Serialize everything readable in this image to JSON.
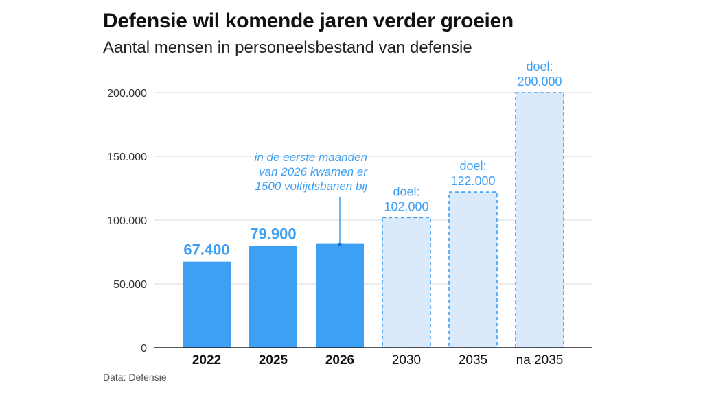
{
  "header": {
    "title": "Defensie wil komende jaren verder groeien",
    "subtitle": "Aantal mensen in personeelsbestand van defensie"
  },
  "footer": {
    "source": "Data: Defensie"
  },
  "colors": {
    "actual_bar": "#3da0f5",
    "target_fill": "#dbeafb",
    "target_stroke": "#3da0f5",
    "label": "#3da0f5",
    "grid": "#d9d9d9"
  },
  "chart_data": {
    "type": "bar",
    "title": "Defensie wil komende jaren verder groeien",
    "subtitle": "Aantal mensen in personeelsbestand van defensie",
    "xlabel": "",
    "ylabel": "",
    "ylim": [
      0,
      200000
    ],
    "yticks": [
      0,
      50000,
      100000,
      150000,
      200000
    ],
    "ytick_labels": [
      "0",
      "50.000",
      "100.000",
      "150.000",
      "200.000"
    ],
    "grid": true,
    "categories": [
      "2022",
      "2025",
      "2026",
      "2030",
      "2035",
      "na 2035"
    ],
    "bars": [
      {
        "category": "2022",
        "value": 67400,
        "kind": "actual",
        "label_lines": [
          "67.400"
        ]
      },
      {
        "category": "2025",
        "value": 79900,
        "kind": "actual",
        "label_lines": [
          "79.900"
        ]
      },
      {
        "category": "2026",
        "value": 81400,
        "kind": "actual",
        "label_lines": []
      },
      {
        "category": "2030",
        "value": 102000,
        "kind": "target",
        "label_lines": [
          "doel:",
          "102.000"
        ]
      },
      {
        "category": "2035",
        "value": 122000,
        "kind": "target",
        "label_lines": [
          "doel:",
          "122.000"
        ]
      },
      {
        "category": "na 2035",
        "value": 200000,
        "kind": "target",
        "label_lines": [
          "doel:",
          "200.000"
        ]
      }
    ],
    "annotation": {
      "category": "2026",
      "lines": [
        "in de eerste maanden",
        "van 2026 kwamen er",
        "1500 voltijdsbanen bij"
      ]
    }
  }
}
